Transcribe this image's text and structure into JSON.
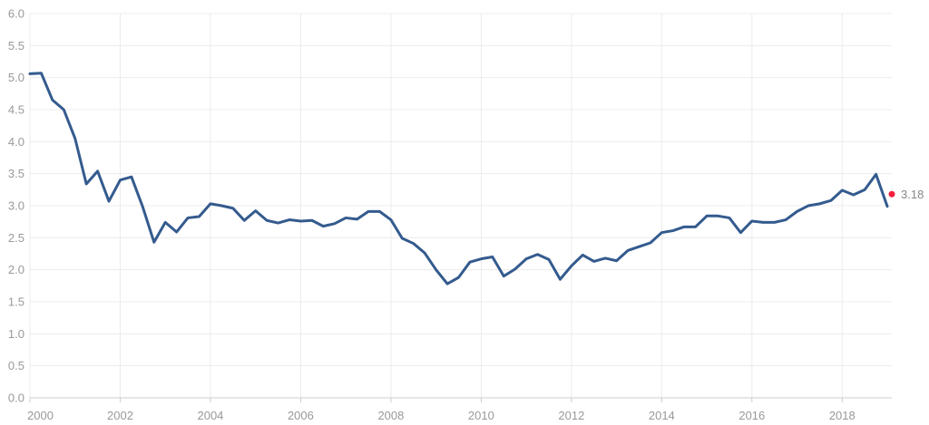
{
  "chart_data": {
    "type": "line",
    "title": "",
    "xlabel": "",
    "ylabel": "",
    "xlim": [
      2000,
      2019.1
    ],
    "ylim": [
      0,
      6
    ],
    "grid": true,
    "x_ticks": [
      "2000",
      "2002",
      "2004",
      "2006",
      "2008",
      "2010",
      "2012",
      "2014",
      "2016",
      "2018"
    ],
    "y_ticks": [
      "0.0",
      "0.5",
      "1.0",
      "1.5",
      "2.0",
      "2.5",
      "3.0",
      "3.5",
      "4.0",
      "4.5",
      "5.0",
      "5.5",
      "6.0"
    ],
    "series": [
      {
        "color": "#345b8e",
        "x": [
          2000.0,
          2000.25,
          2000.5,
          2000.75,
          2001.0,
          2001.25,
          2001.5,
          2001.75,
          2002.0,
          2002.25,
          2002.5,
          2002.75,
          2003.0,
          2003.25,
          2003.5,
          2003.75,
          2004.0,
          2004.25,
          2004.5,
          2004.75,
          2005.0,
          2005.25,
          2005.5,
          2005.75,
          2006.0,
          2006.25,
          2006.5,
          2006.75,
          2007.0,
          2007.25,
          2007.5,
          2007.75,
          2008.0,
          2008.25,
          2008.5,
          2008.75,
          2009.0,
          2009.25,
          2009.5,
          2009.75,
          2010.0,
          2010.25,
          2010.5,
          2010.75,
          2011.0,
          2011.25,
          2011.5,
          2011.75,
          2012.0,
          2012.25,
          2012.5,
          2012.75,
          2013.0,
          2013.25,
          2013.5,
          2013.75,
          2014.0,
          2014.25,
          2014.5,
          2014.75,
          2015.0,
          2015.25,
          2015.5,
          2015.75,
          2016.0,
          2016.25,
          2016.5,
          2016.75,
          2017.0,
          2017.25,
          2017.5,
          2017.75,
          2018.0,
          2018.25,
          2018.5,
          2018.75,
          2019.0
        ],
        "values": [
          5.06,
          5.07,
          4.65,
          4.5,
          4.05,
          3.34,
          3.54,
          3.07,
          3.4,
          3.45,
          2.98,
          2.43,
          2.74,
          2.59,
          2.81,
          2.83,
          3.03,
          3.0,
          2.96,
          2.77,
          2.92,
          2.77,
          2.73,
          2.78,
          2.76,
          2.77,
          2.68,
          2.72,
          2.81,
          2.79,
          2.91,
          2.91,
          2.78,
          2.49,
          2.41,
          2.26,
          2.0,
          1.78,
          1.88,
          2.12,
          2.17,
          2.2,
          1.9,
          2.01,
          2.17,
          2.24,
          2.16,
          1.85,
          2.06,
          2.23,
          2.13,
          2.18,
          2.14,
          2.3,
          2.36,
          2.42,
          2.58,
          2.61,
          2.67,
          2.67,
          2.84,
          2.84,
          2.81,
          2.58,
          2.76,
          2.74,
          2.74,
          2.78,
          2.91,
          3.0,
          3.03,
          3.08,
          3.24,
          3.17,
          3.25,
          3.49,
          2.99
        ]
      }
    ],
    "last_point": {
      "x": 2019.1,
      "value": 3.18,
      "label": "3.18",
      "color": "#f2203e"
    }
  }
}
